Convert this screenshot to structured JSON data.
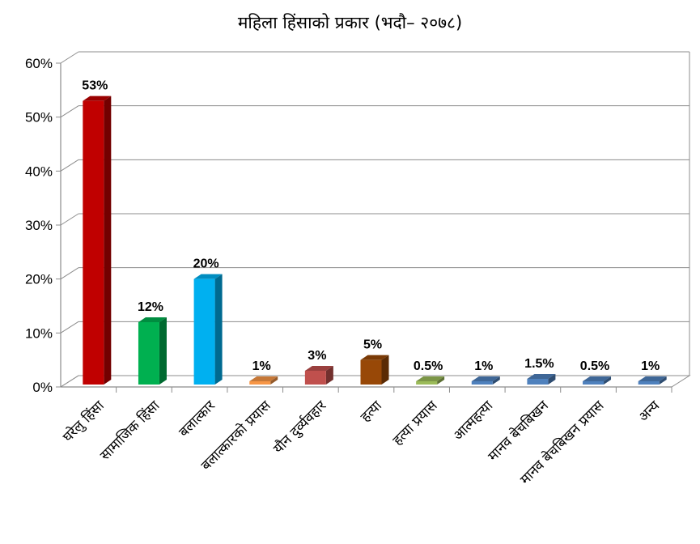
{
  "chart_data": {
    "type": "bar",
    "title": "महिला हिंसाको प्रकार  (भदौ– २०७८)",
    "xlabel": "",
    "ylabel": "",
    "ylim": [
      0,
      60
    ],
    "y_ticks": [
      "0%",
      "10%",
      "20%",
      "30%",
      "40%",
      "50%",
      "60%"
    ],
    "grid": true,
    "legend": "none",
    "style": "3d-column",
    "categories": [
      "घरेलु हिंसा",
      "सामाजिक हिंसा",
      "बलात्कार",
      "बलात्कारको प्रयास",
      "यौन दुर्व्यवहार",
      "हत्या",
      "हत्या प्रयास",
      "आत्महत्या",
      "मानव बेचबिखन",
      "मानव बेचबिखन प्रयास",
      "अन्य"
    ],
    "values": [
      53,
      12,
      20,
      1,
      3,
      5,
      0.5,
      1,
      1.5,
      0.5,
      1
    ],
    "data_labels": [
      "53%",
      "12%",
      "20%",
      "1%",
      "3%",
      "5%",
      "0.5%",
      "1%",
      "1.5%",
      "0.5%",
      "1%"
    ],
    "colors": [
      "#c00000",
      "#00b050",
      "#00b0f0",
      "#f79646",
      "#c0504d",
      "#984807",
      "#9bbb59",
      "#4f81bd",
      "#4f81bd",
      "#4f81bd",
      "#4f81bd"
    ]
  }
}
